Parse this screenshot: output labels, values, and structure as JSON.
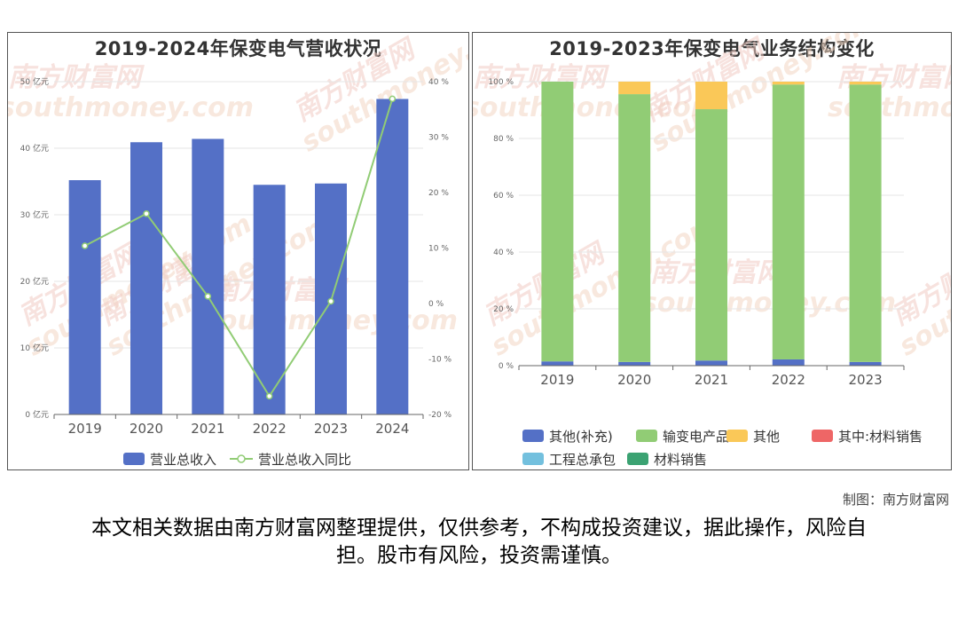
{
  "credit": "制图：南方财富网",
  "disclaimer": "本文相关数据由南方财富网整理提供，仅供参考，不构成投资建议，据此操作，风险自担。股市有风险，投资需谨慎。",
  "watermark": {
    "cn": "南方财富网",
    "en": "southmoney.com"
  },
  "chart_data": [
    {
      "type": "bar",
      "title": "2019-2024年保变电气营收状况",
      "categories": [
        "2019",
        "2020",
        "2021",
        "2022",
        "2023",
        "2024"
      ],
      "series": [
        {
          "name": "营业总收入",
          "type": "bar",
          "axis": "left",
          "color": "#5470c6",
          "values": [
            35.2,
            40.9,
            41.4,
            34.5,
            34.7,
            47.4
          ]
        },
        {
          "name": "营业总收入同比",
          "type": "line",
          "axis": "right",
          "color": "#91cc75",
          "values": [
            10.4,
            16.2,
            1.3,
            -16.7,
            0.4,
            36.9
          ]
        }
      ],
      "y_left": {
        "ylim": [
          0,
          50
        ],
        "ticks": [
          0,
          10,
          20,
          30,
          40,
          50
        ],
        "tick_labels": [
          "0 亿元",
          "10 亿元",
          "20 亿元",
          "30 亿元",
          "40 亿元",
          "50 亿元"
        ]
      },
      "y_right": {
        "ylim": [
          -20,
          40
        ],
        "ticks": [
          -20,
          -10,
          0,
          10,
          20,
          30,
          40
        ],
        "tick_labels": [
          "-20 %",
          "-10 %",
          "0 %",
          "10 %",
          "20 %",
          "30 %",
          "40 %"
        ]
      },
      "grid": true,
      "legend": "bottom"
    },
    {
      "type": "bar",
      "stacked": true,
      "title": "2019-2023年保变电气业务结构变化",
      "categories": [
        "2019",
        "2020",
        "2021",
        "2022",
        "2023"
      ],
      "series": [
        {
          "name": "其他(补充)",
          "color": "#5470c6",
          "values": [
            1.5,
            1.3,
            1.8,
            2.2,
            1.3
          ]
        },
        {
          "name": "输变电产品",
          "color": "#91cc75",
          "values": [
            98.5,
            94.3,
            88.5,
            96.8,
            97.7
          ]
        },
        {
          "name": "其他",
          "color": "#fac858",
          "values": [
            0,
            4.4,
            9.7,
            1.0,
            1.0
          ]
        },
        {
          "name": "其中:材料销售",
          "color": "#ee6666",
          "values": [
            0,
            0,
            0,
            0,
            0
          ]
        },
        {
          "name": "工程总承包",
          "color": "#73c0de",
          "values": [
            0,
            0,
            0,
            0,
            0
          ]
        },
        {
          "name": "材料销售",
          "color": "#3ba272",
          "values": [
            0,
            0,
            0,
            0,
            0
          ]
        }
      ],
      "y": {
        "ylim": [
          0,
          100
        ],
        "ticks": [
          0,
          20,
          40,
          60,
          80,
          100
        ],
        "tick_labels": [
          "0 %",
          "20 %",
          "40 %",
          "60 %",
          "80 %",
          "100 %"
        ]
      },
      "grid": true,
      "legend": "bottom"
    }
  ]
}
